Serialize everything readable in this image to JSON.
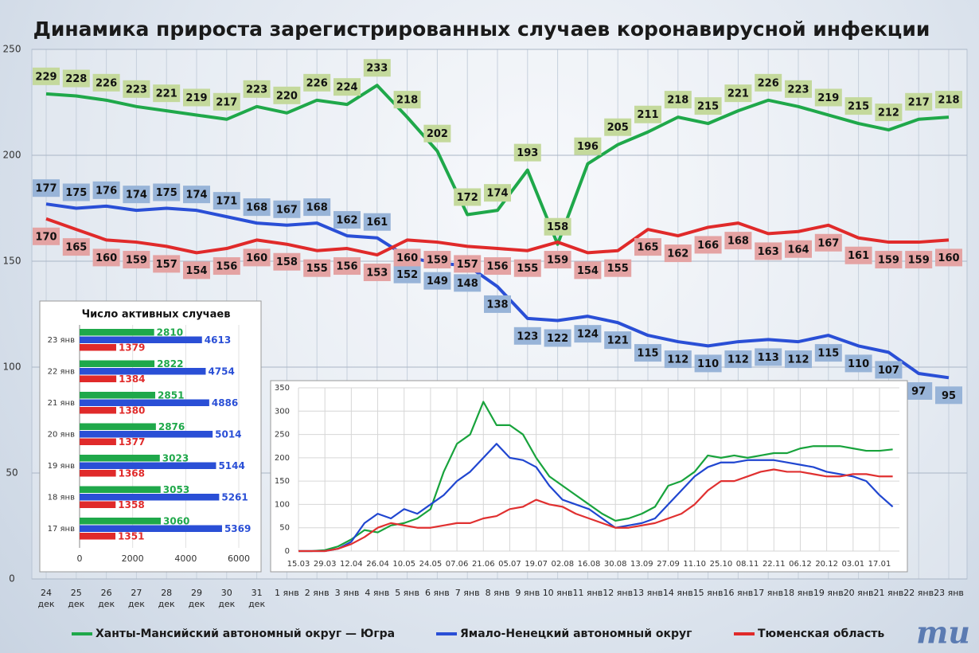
{
  "chart_data": [
    {
      "type": "line",
      "title": "Динамика прироста зарегистрированных случаев коронавирусной инфекции",
      "categories": [
        "24 дек",
        "25 дек",
        "26 дек",
        "27 дек",
        "28 дек",
        "29 дек",
        "30 дек",
        "31 дек",
        "1 янв",
        "2 янв",
        "3 янв",
        "4 янв",
        "5 янв",
        "6 янв",
        "7 янв",
        "8 янв",
        "9 янв",
        "10 янв",
        "11 янв",
        "12 янв",
        "13 янв",
        "14 янв",
        "15 янв",
        "16 янв",
        "17 янв",
        "18 янв",
        "19 янв",
        "20 янв",
        "21 янв",
        "22 янв",
        "23 янв"
      ],
      "series": [
        {
          "name": "Ханты-Мансийский автономный округ — Югра",
          "color": "#1fa84a",
          "label_color": "#c4d99c",
          "values": [
            229,
            228,
            226,
            223,
            221,
            219,
            217,
            223,
            220,
            226,
            224,
            233,
            218,
            202,
            172,
            174,
            193,
            158,
            196,
            205,
            211,
            218,
            215,
            221,
            226,
            223,
            219,
            215,
            212,
            217,
            218
          ]
        },
        {
          "name": "Ямало-Ненецкий автономный округ",
          "color": "#2a4fd6",
          "label_color": "#98b4d8",
          "values": [
            177,
            175,
            176,
            174,
            175,
            174,
            171,
            168,
            167,
            168,
            162,
            161,
            152,
            149,
            148,
            138,
            123,
            122,
            124,
            121,
            115,
            112,
            110,
            112,
            113,
            112,
            115,
            110,
            107,
            97,
            95
          ]
        },
        {
          "name": "Тюменская область",
          "color": "#e02a2a",
          "label_color": "#e4a3a3",
          "values": [
            170,
            165,
            160,
            159,
            157,
            154,
            156,
            160,
            158,
            155,
            156,
            153,
            160,
            159,
            157,
            156,
            155,
            159,
            154,
            155,
            165,
            162,
            166,
            168,
            163,
            164,
            167,
            161,
            159,
            159,
            160
          ]
        }
      ],
      "ylim": [
        0,
        250
      ],
      "yticks": [
        0,
        50,
        100,
        150,
        200,
        250
      ],
      "grid": true,
      "legend": "bottom"
    },
    {
      "type": "bar",
      "orientation": "horizontal",
      "title": "Число активных случаев",
      "categories": [
        "23 янв",
        "22 янв",
        "21 янв",
        "20 янв",
        "19 янв",
        "18 янв",
        "17 янв"
      ],
      "series": [
        {
          "color": "#1fa84a",
          "values": [
            2810,
            2822,
            2851,
            2876,
            3023,
            3053,
            3060
          ]
        },
        {
          "color": "#2a4fd6",
          "values": [
            4613,
            4754,
            4886,
            5014,
            5144,
            5261,
            5369
          ]
        },
        {
          "color": "#e02a2a",
          "values": [
            1379,
            1384,
            1380,
            1377,
            1368,
            1358,
            1351
          ]
        }
      ],
      "xlim": [
        0,
        6000
      ],
      "xticks": [
        0,
        2000,
        4000,
        6000
      ]
    },
    {
      "type": "line",
      "categories": [
        "15.03",
        null,
        "29.03",
        null,
        "12.04",
        null,
        "26.04",
        null,
        "10.05",
        null,
        "24.05",
        null,
        "07.06",
        null,
        "21.06",
        null,
        "05.07",
        null,
        "19.07",
        null,
        "02.08",
        null,
        "16.08",
        null,
        "30.08",
        null,
        "13.09",
        null,
        "27.09",
        null,
        "11.10",
        null,
        "25.10",
        null,
        "08.11",
        null,
        "22.11",
        null,
        "06.12",
        null,
        "20.12",
        null,
        "03.01",
        null,
        "17.01",
        null
      ],
      "series": [
        {
          "color": "#18a33c",
          "values": [
            0,
            0,
            2,
            10,
            25,
            45,
            40,
            55,
            60,
            70,
            90,
            170,
            230,
            250,
            320,
            270,
            270,
            250,
            200,
            160,
            140,
            120,
            100,
            80,
            65,
            70,
            80,
            95,
            140,
            150,
            170,
            205,
            200,
            205,
            200,
            205,
            210,
            210,
            220,
            225,
            225,
            225,
            220,
            215,
            215,
            218
          ]
        },
        {
          "color": "#2046d0",
          "values": [
            0,
            0,
            0,
            5,
            20,
            60,
            80,
            70,
            90,
            80,
            100,
            120,
            150,
            170,
            200,
            230,
            200,
            195,
            180,
            140,
            110,
            100,
            90,
            70,
            50,
            55,
            60,
            70,
            100,
            130,
            160,
            180,
            190,
            190,
            195,
            195,
            195,
            190,
            185,
            180,
            170,
            165,
            160,
            150,
            120,
            95
          ]
        },
        {
          "color": "#e03030",
          "values": [
            0,
            0,
            0,
            5,
            15,
            30,
            50,
            60,
            55,
            50,
            50,
            55,
            60,
            60,
            70,
            75,
            90,
            95,
            110,
            100,
            95,
            80,
            70,
            60,
            50,
            50,
            55,
            60,
            70,
            80,
            100,
            130,
            150,
            150,
            160,
            170,
            175,
            170,
            170,
            165,
            160,
            160,
            165,
            165,
            160,
            160
          ]
        }
      ],
      "ylim": [
        0,
        350
      ],
      "yticks": [
        0,
        50,
        100,
        150,
        200,
        250,
        300,
        350
      ],
      "grid": true
    }
  ],
  "logo": "mu"
}
